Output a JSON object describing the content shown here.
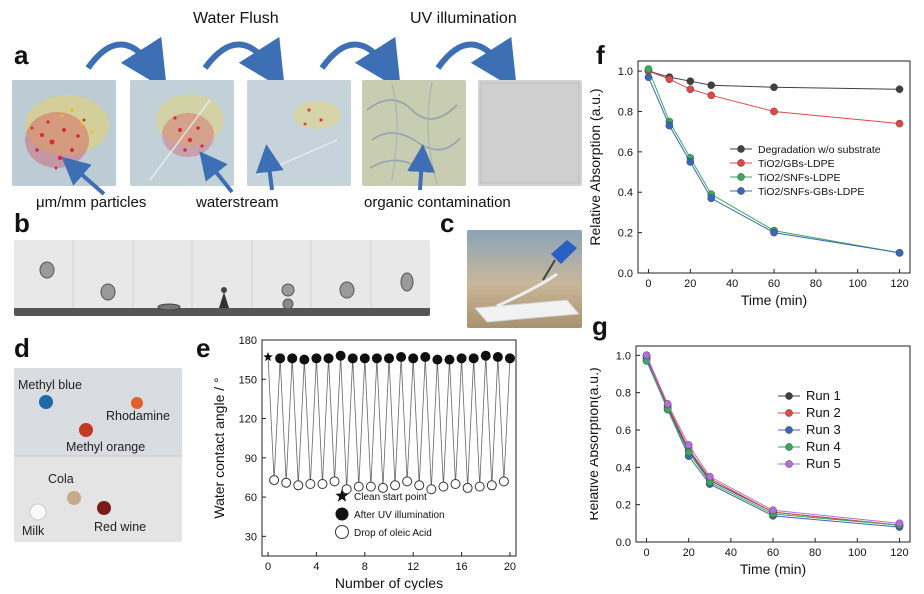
{
  "panel_labels": {
    "a": "a",
    "b": "b",
    "c": "c",
    "d": "d",
    "e": "e",
    "f": "f",
    "g": "g"
  },
  "panel_a": {
    "stage_titles": [
      "Water Flush",
      "UV illumination"
    ],
    "captions": [
      "μm/mm particles",
      "waterstream",
      "organic contamination"
    ]
  },
  "panel_d": {
    "drops": [
      "Methyl blue",
      "Rhodamine",
      "Methyl orange",
      "Cola",
      "Milk",
      "Red wine"
    ]
  },
  "colors": {
    "arrow": "#3d6fb5",
    "series_black": "#404040",
    "series_red": "#e04848",
    "series_green": "#3aa860",
    "series_blue": "#3a66b8",
    "series_purple": "#b070d8"
  },
  "chart_data": [
    {
      "id": "e",
      "type": "line",
      "xlabel": "Number of cycles",
      "ylabel": "Water contact angle / °",
      "xlim": [
        -0.5,
        20.5
      ],
      "ylim": [
        15,
        180
      ],
      "xticks": [
        0,
        4,
        8,
        12,
        16,
        20
      ],
      "yticks": [
        30,
        60,
        90,
        120,
        150,
        180
      ],
      "series": [
        {
          "name": "Clean start point",
          "marker": "star",
          "x": [
            0
          ],
          "y": [
            167
          ]
        },
        {
          "name": "After UV illumination",
          "marker": "filled-circle",
          "x": [
            1,
            2,
            3,
            4,
            5,
            6,
            7,
            8,
            9,
            10,
            11,
            12,
            13,
            14,
            15,
            16,
            17,
            18,
            19,
            20
          ],
          "y": [
            166,
            166,
            165,
            166,
            166,
            168,
            166,
            166,
            166,
            166,
            167,
            166,
            167,
            165,
            165,
            166,
            166,
            168,
            167,
            166
          ]
        },
        {
          "name": "Drop of oleic Acid",
          "marker": "open-circle",
          "x": [
            0.5,
            1.5,
            2.5,
            3.5,
            4.5,
            5.5,
            6.5,
            7.5,
            8.5,
            9.5,
            10.5,
            11.5,
            12.5,
            13.5,
            14.5,
            15.5,
            16.5,
            17.5,
            18.5,
            19.5
          ],
          "y": [
            73,
            71,
            69,
            70,
            70,
            72,
            66,
            68,
            68,
            67,
            69,
            72,
            69,
            66,
            68,
            70,
            67,
            68,
            69,
            72
          ]
        }
      ]
    },
    {
      "id": "f",
      "type": "line",
      "xlabel": "Time (min)",
      "ylabel": "Relative Absorption (a.u.)",
      "xlim": [
        -5,
        125
      ],
      "ylim": [
        0,
        1.05
      ],
      "xticks": [
        0,
        20,
        40,
        60,
        80,
        100,
        120
      ],
      "yticks": [
        0.0,
        0.2,
        0.4,
        0.6,
        0.8,
        1.0
      ],
      "x": [
        0,
        10,
        20,
        30,
        60,
        120
      ],
      "series": [
        {
          "name": "Degradation w/o substrate",
          "color": "black",
          "values": [
            1.0,
            0.97,
            0.95,
            0.93,
            0.92,
            0.91
          ]
        },
        {
          "name": "TiO2/GBs-LDPE",
          "color": "red",
          "values": [
            1.0,
            0.96,
            0.91,
            0.88,
            0.8,
            0.74
          ]
        },
        {
          "name": "TiO2/SNFs-LDPE",
          "color": "green",
          "values": [
            1.01,
            0.75,
            0.57,
            0.39,
            0.21,
            0.1
          ]
        },
        {
          "name": "TiO2/SNFs-GBs-LDPE",
          "color": "blue",
          "values": [
            0.97,
            0.73,
            0.55,
            0.37,
            0.2,
            0.1
          ]
        }
      ]
    },
    {
      "id": "g",
      "type": "line",
      "xlabel": "Time (min)",
      "ylabel": "Relative Absorption(a.u.)",
      "xlim": [
        -5,
        125
      ],
      "ylim": [
        0,
        1.05
      ],
      "xticks": [
        0,
        20,
        40,
        60,
        80,
        100,
        120
      ],
      "yticks": [
        0.0,
        0.2,
        0.4,
        0.6,
        0.8,
        1.0
      ],
      "x": [
        0,
        10,
        20,
        30,
        60,
        120
      ],
      "series": [
        {
          "name": "Run 1",
          "color": "black",
          "values": [
            1.0,
            0.72,
            0.49,
            0.33,
            0.16,
            0.09
          ]
        },
        {
          "name": "Run 2",
          "color": "red",
          "values": [
            0.99,
            0.73,
            0.5,
            0.34,
            0.16,
            0.09
          ]
        },
        {
          "name": "Run 3",
          "color": "blue",
          "values": [
            0.98,
            0.71,
            0.46,
            0.31,
            0.14,
            0.08
          ]
        },
        {
          "name": "Run 4",
          "color": "green",
          "values": [
            0.97,
            0.71,
            0.48,
            0.32,
            0.15,
            0.09
          ]
        },
        {
          "name": "Run 5",
          "color": "purple",
          "values": [
            1.0,
            0.74,
            0.52,
            0.35,
            0.17,
            0.1
          ]
        }
      ]
    }
  ]
}
